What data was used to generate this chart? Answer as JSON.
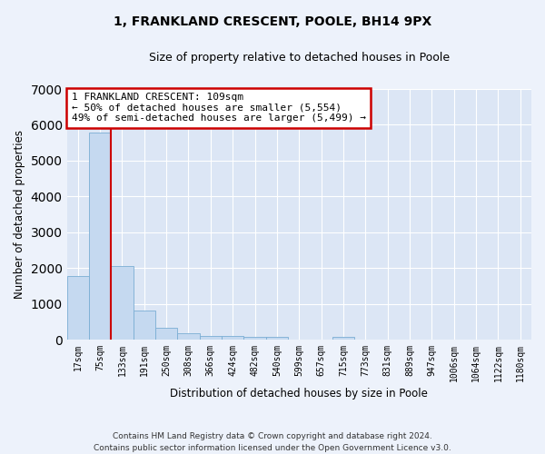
{
  "title": "1, FRANKLAND CRESCENT, POOLE, BH14 9PX",
  "subtitle": "Size of property relative to detached houses in Poole",
  "xlabel": "Distribution of detached houses by size in Poole",
  "ylabel": "Number of detached properties",
  "bar_color": "#c5d9f0",
  "bar_edge_color": "#7aadd4",
  "background_color": "#dce6f5",
  "grid_color": "#ffffff",
  "fig_background_color": "#edf2fb",
  "categories": [
    "17sqm",
    "75sqm",
    "133sqm",
    "191sqm",
    "250sqm",
    "308sqm",
    "366sqm",
    "424sqm",
    "482sqm",
    "540sqm",
    "599sqm",
    "657sqm",
    "715sqm",
    "773sqm",
    "831sqm",
    "889sqm",
    "947sqm",
    "1006sqm",
    "1064sqm",
    "1122sqm",
    "1180sqm"
  ],
  "values": [
    1780,
    5780,
    2060,
    820,
    340,
    190,
    110,
    100,
    80,
    70,
    0,
    0,
    80,
    0,
    0,
    0,
    0,
    0,
    0,
    0,
    0
  ],
  "ylim": [
    0,
    7000
  ],
  "yticks": [
    0,
    1000,
    2000,
    3000,
    4000,
    5000,
    6000,
    7000
  ],
  "vline_index": 1,
  "annotation_line1": "1 FRANKLAND CRESCENT: 109sqm",
  "annotation_line2": "← 50% of detached houses are smaller (5,554)",
  "annotation_line3": "49% of semi-detached houses are larger (5,499) →",
  "annotation_box_color": "#ffffff",
  "annotation_border_color": "#cc0000",
  "vline_color": "#cc0000",
  "footer_line1": "Contains HM Land Registry data © Crown copyright and database right 2024.",
  "footer_line2": "Contains public sector information licensed under the Open Government Licence v3.0."
}
